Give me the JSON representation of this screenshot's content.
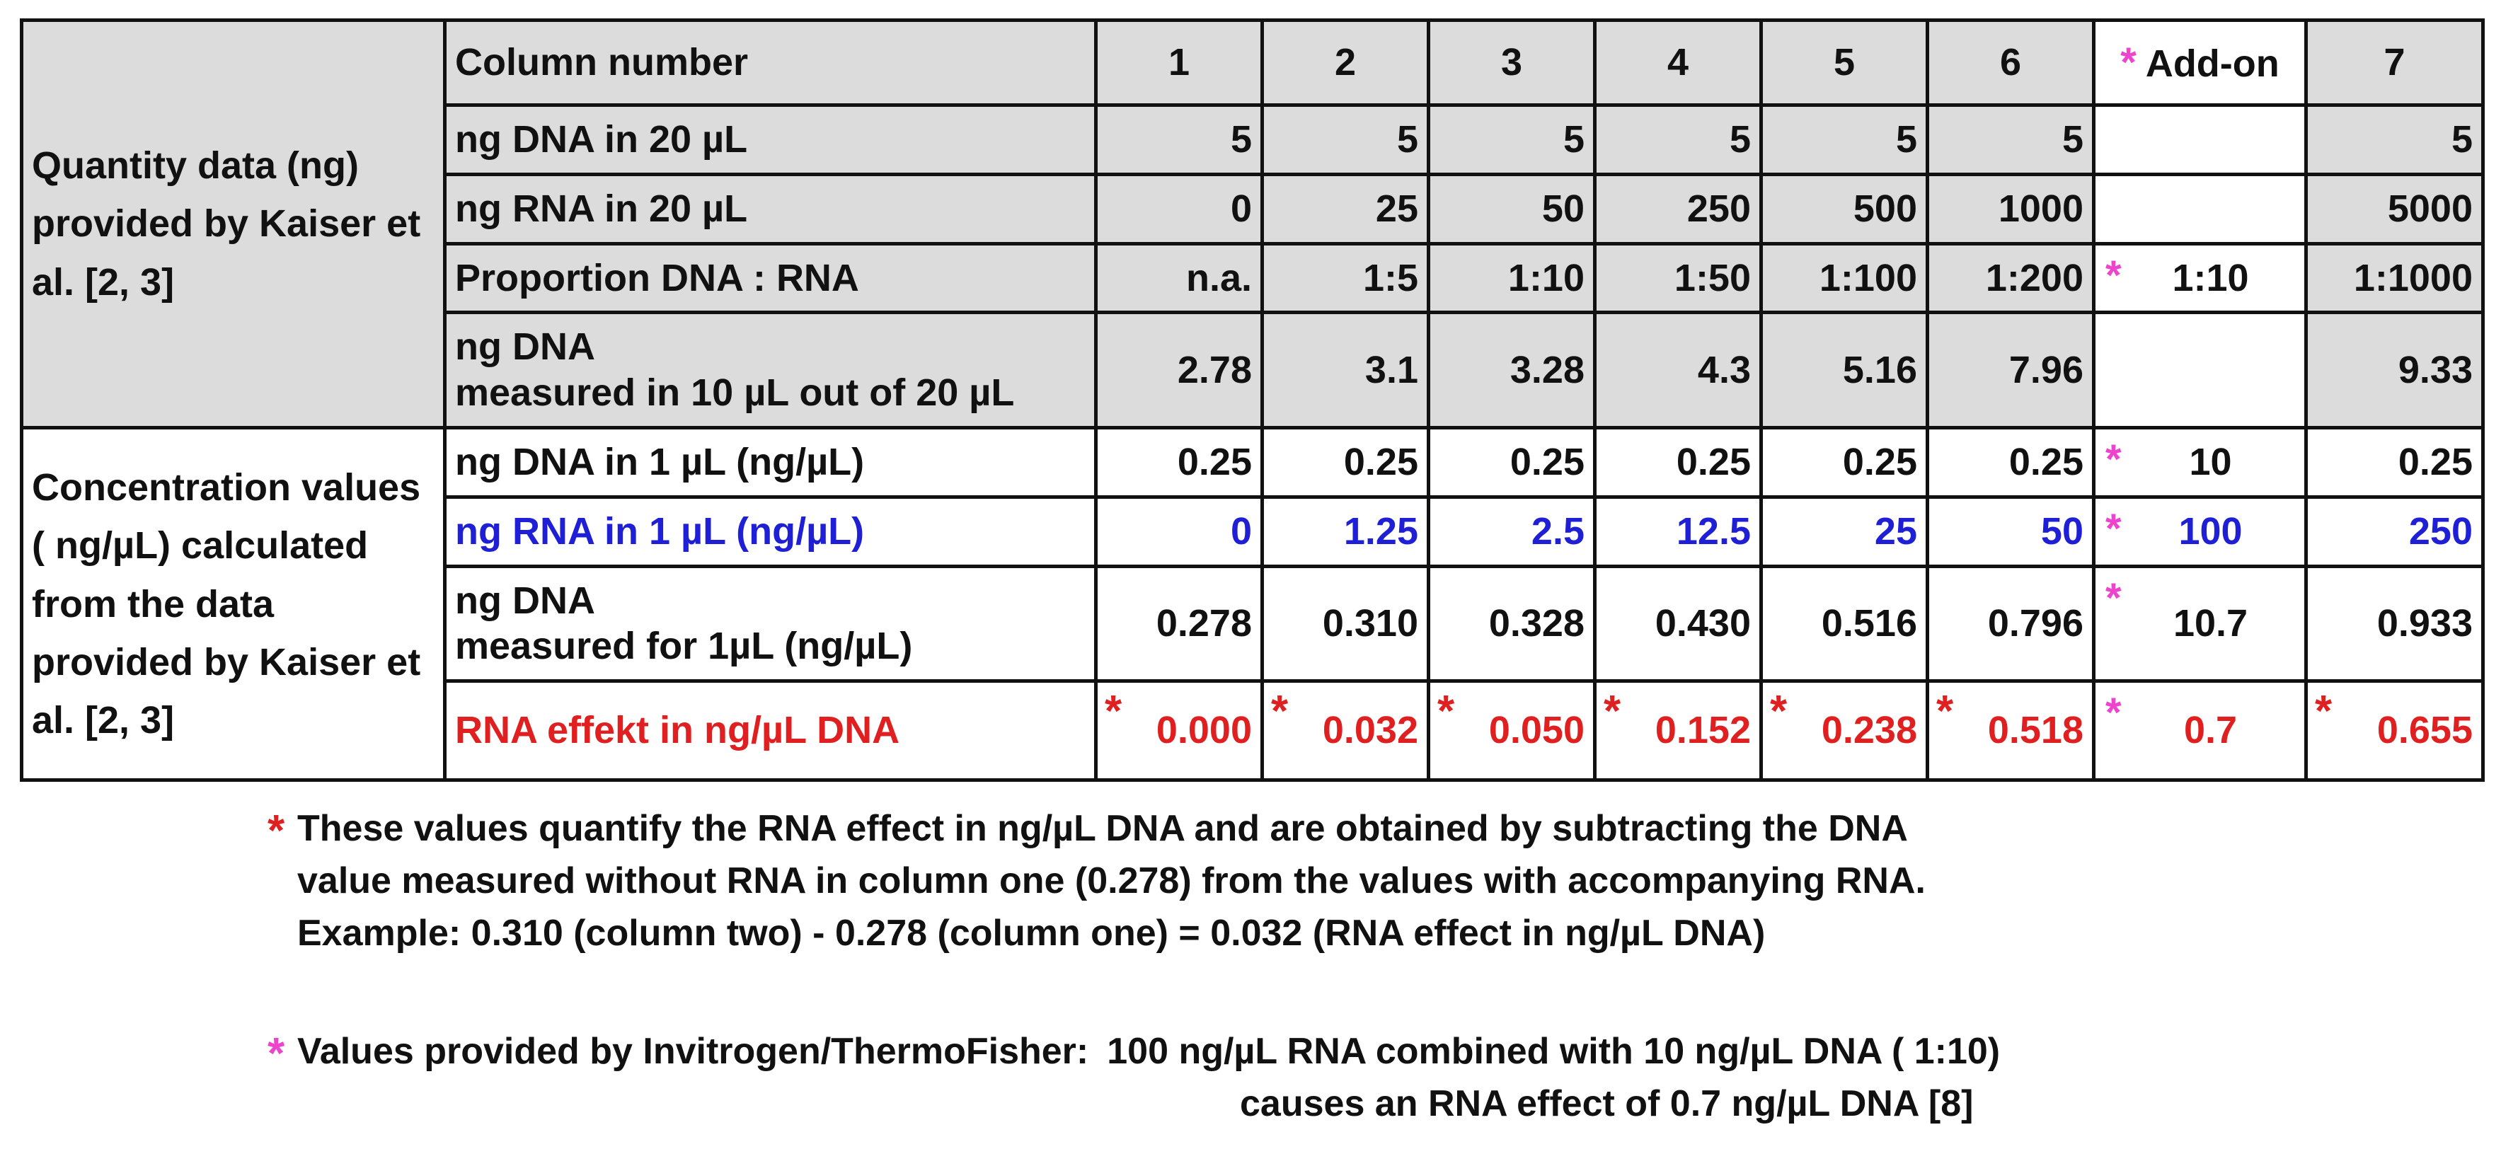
{
  "table": {
    "section1_label": "Quantity data (ng) provided by Kaiser et al. [2, 3]",
    "section2_label": "Concentration values ( ng/µL) calculated from the data provided by Kaiser et al. [2, 3]",
    "header": {
      "label": "Column number",
      "cols": [
        "1",
        "2",
        "3",
        "4",
        "5",
        "6"
      ],
      "addon": "Add-on",
      "col7": "7"
    },
    "rows": {
      "dna20": {
        "label": "ng DNA in 20 µL",
        "values": [
          "5",
          "5",
          "5",
          "5",
          "5",
          "5"
        ],
        "addon": "",
        "col7": "5"
      },
      "rna20": {
        "label": "ng RNA in 20 µL",
        "values": [
          "0",
          "25",
          "50",
          "250",
          "500",
          "1000"
        ],
        "addon": "",
        "col7": "5000"
      },
      "proportion": {
        "label": "Proportion DNA : RNA",
        "values": [
          "n.a.",
          "1:5",
          "1:10",
          "1:50",
          "1:100",
          "1:200"
        ],
        "addon": "1:10",
        "col7": "1:1000"
      },
      "dna_measured10": {
        "label_line1": "ng DNA",
        "label_line2": "measured in 10 µL out of 20 µL",
        "values": [
          "2.78",
          "3.1",
          "3.28",
          "4.3",
          "5.16",
          "7.96"
        ],
        "addon": "",
        "col7": "9.33"
      },
      "dna1": {
        "label": "ng DNA in 1 µL (ng/µL)",
        "values": [
          "0.25",
          "0.25",
          "0.25",
          "0.25",
          "0.25",
          "0.25"
        ],
        "addon": "10",
        "col7": "0.25"
      },
      "rna1": {
        "label": "ng RNA in 1 µL (ng/µL)",
        "values": [
          "0",
          "1.25",
          "2.5",
          "12.5",
          "25",
          "50"
        ],
        "addon": "100",
        "col7": "250"
      },
      "dna_measured1": {
        "label_line1": "ng DNA",
        "label_line2": "measured for 1µL (ng/µL)",
        "values": [
          "0.278",
          "0.310",
          "0.328",
          "0.430",
          "0.516",
          "0.796"
        ],
        "addon": "10.7",
        "col7": "0.933"
      },
      "rna_effect": {
        "label": "RNA effekt in ng/µL DNA",
        "values": [
          "0.000",
          "0.032",
          "0.050",
          "0.152",
          "0.238",
          "0.518"
        ],
        "addon": "0.7",
        "col7": "0.655"
      }
    },
    "star": "*"
  },
  "colors": {
    "red": "#e02020",
    "magenta": "#ee44cc",
    "blue": "#1f1fd6",
    "gray_bg": "#dcdcdc"
  },
  "footnotes": {
    "red": {
      "line1": "These values quantify the RNA effect in ng/µL DNA and are obtained by subtracting the DNA",
      "line2": "value measured without RNA in column one (0.278) from the values with accompanying RNA.",
      "line3": "Example: 0.310 (column two) - 0.278 (column one) = 0.032 (RNA effect in ng/µL DNA)"
    },
    "magenta": {
      "prefix": "Values provided by Invitrogen/ThermoFisher:",
      "line1": "100 ng/µL RNA combined with 10 ng/µL DNA ( 1:10)",
      "line2": "causes an RNA effect of 0.7 ng/µL DNA [8]"
    }
  }
}
